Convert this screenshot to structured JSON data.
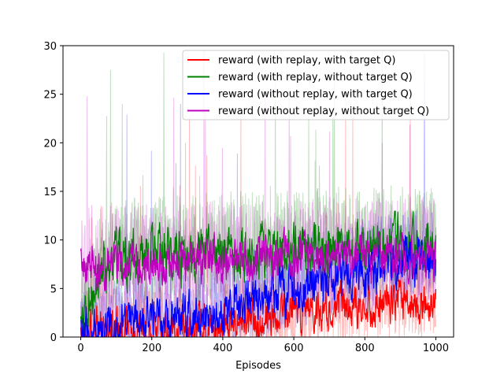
{
  "chart_data": {
    "type": "line",
    "title": "",
    "xlabel": "Episodes",
    "ylabel": "",
    "xlim": [
      -50,
      1050
    ],
    "ylim": [
      0,
      30
    ],
    "xticks": [
      0,
      200,
      400,
      600,
      800,
      1000
    ],
    "yticks": [
      0,
      5,
      10,
      15,
      20,
      25,
      30
    ],
    "xtick_labels": [
      "0",
      "200",
      "400",
      "600",
      "800",
      "1000"
    ],
    "ytick_labels": [
      "0",
      "5",
      "10",
      "15",
      "20",
      "25",
      "30"
    ],
    "episodes": 1000,
    "grid": false,
    "legend_position": "top-right",
    "raw_series_alpha": 0.25,
    "series": [
      {
        "name": "reward (with replay, with target Q)",
        "color": "#ff0000",
        "smoothed_trend": [
          [
            0,
            0.3
          ],
          [
            100,
            0.5
          ],
          [
            200,
            0.7
          ],
          [
            300,
            1.0
          ],
          [
            400,
            1.3
          ],
          [
            500,
            1.8
          ],
          [
            600,
            2.5
          ],
          [
            700,
            3.0
          ],
          [
            800,
            3.3
          ],
          [
            900,
            3.6
          ],
          [
            1000,
            3.8
          ]
        ],
        "noise_amplitude": 2.0,
        "raw_spread": 6.0
      },
      {
        "name": "reward (with replay, without target Q)",
        "color": "#008000",
        "smoothed_trend": [
          [
            0,
            1.0
          ],
          [
            50,
            6.0
          ],
          [
            100,
            8.0
          ],
          [
            200,
            8.5
          ],
          [
            300,
            8.5
          ],
          [
            400,
            8.8
          ],
          [
            500,
            9.0
          ],
          [
            600,
            9.0
          ],
          [
            700,
            9.2
          ],
          [
            800,
            9.3
          ],
          [
            900,
            9.5
          ],
          [
            1000,
            9.5
          ]
        ],
        "noise_amplitude": 2.5,
        "raw_spread": 8.0
      },
      {
        "name": "reward (without replay, with target Q)",
        "color": "#0000ff",
        "smoothed_trend": [
          [
            0,
            0.5
          ],
          [
            100,
            1.2
          ],
          [
            200,
            1.8
          ],
          [
            300,
            2.2
          ],
          [
            400,
            2.8
          ],
          [
            500,
            4.0
          ],
          [
            600,
            5.0
          ],
          [
            700,
            6.0
          ],
          [
            800,
            6.8
          ],
          [
            900,
            7.5
          ],
          [
            1000,
            8.0
          ]
        ],
        "noise_amplitude": 2.2,
        "raw_spread": 7.0
      },
      {
        "name": "reward (without replay, without target Q)",
        "color": "#bf00bf",
        "smoothed_trend": [
          [
            0,
            7.5
          ],
          [
            100,
            7.5
          ],
          [
            200,
            7.8
          ],
          [
            300,
            7.8
          ],
          [
            400,
            8.0
          ],
          [
            500,
            8.0
          ],
          [
            600,
            8.0
          ],
          [
            700,
            8.2
          ],
          [
            800,
            8.2
          ],
          [
            900,
            8.3
          ],
          [
            1000,
            8.3
          ]
        ],
        "noise_amplitude": 2.0,
        "raw_spread": 8.0
      }
    ]
  }
}
